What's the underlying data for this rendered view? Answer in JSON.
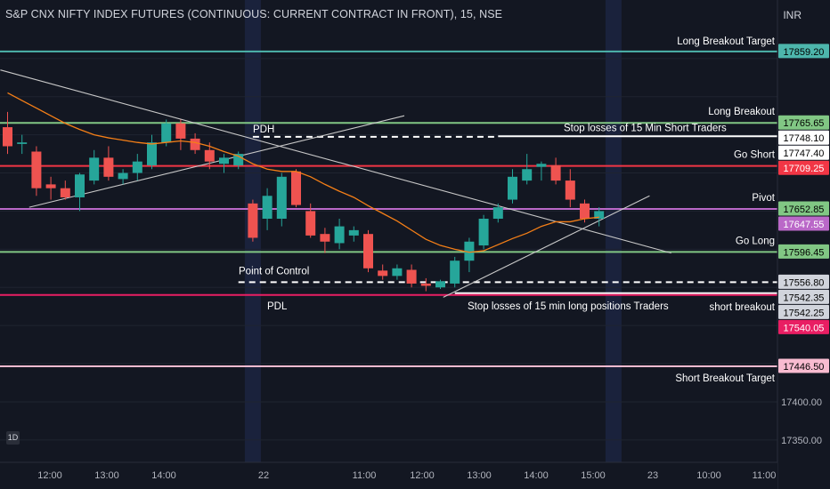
{
  "header": {
    "title": "S&P CNX NIFTY INDEX FUTURES (CONTINUOUS: CURRENT CONTRACT IN FRONT), 15, NSE",
    "currency": "INR"
  },
  "badge": "1D",
  "colors": {
    "background": "#131722",
    "up": "#26a69a",
    "down": "#ef5350",
    "ema": "#f57f17",
    "target": "#4db6ac",
    "green_level": "#81c784",
    "red_level": "#f23645",
    "pivot": "#ba68c8",
    "pink_level": "#e91e63",
    "light_pink": "#f8bbd0",
    "white": "#ffffff"
  },
  "chart_data": {
    "type": "candlestick",
    "ylim": [
      17330,
      17890
    ],
    "y_ticks": [
      "17400.00",
      "17350.00"
    ],
    "x_ticks": [
      "12:00",
      "13:00",
      "14:00",
      "22",
      "11:00",
      "12:00",
      "13:00",
      "14:00",
      "15:00",
      "23",
      "10:00",
      "11:00"
    ],
    "candles": [
      {
        "o": 17760,
        "h": 17780,
        "l": 17725,
        "c": 17735
      },
      {
        "o": 17738,
        "h": 17750,
        "l": 17725,
        "c": 17740
      },
      {
        "o": 17728,
        "h": 17735,
        "l": 17670,
        "c": 17680
      },
      {
        "o": 17685,
        "h": 17695,
        "l": 17665,
        "c": 17680
      },
      {
        "o": 17680,
        "h": 17690,
        "l": 17665,
        "c": 17668
      },
      {
        "o": 17668,
        "h": 17700,
        "l": 17650,
        "c": 17698
      },
      {
        "o": 17690,
        "h": 17730,
        "l": 17685,
        "c": 17720
      },
      {
        "o": 17720,
        "h": 17735,
        "l": 17690,
        "c": 17695
      },
      {
        "o": 17692,
        "h": 17705,
        "l": 17685,
        "c": 17700
      },
      {
        "o": 17700,
        "h": 17725,
        "l": 17690,
        "c": 17715
      },
      {
        "o": 17710,
        "h": 17750,
        "l": 17705,
        "c": 17740
      },
      {
        "o": 17740,
        "h": 17770,
        "l": 17735,
        "c": 17765
      },
      {
        "o": 17765,
        "h": 17770,
        "l": 17730,
        "c": 17745
      },
      {
        "o": 17745,
        "h": 17752,
        "l": 17725,
        "c": 17730
      },
      {
        "o": 17730,
        "h": 17740,
        "l": 17705,
        "c": 17715
      },
      {
        "o": 17712,
        "h": 17725,
        "l": 17700,
        "c": 17720
      },
      {
        "o": 17710,
        "h": 17728,
        "l": 17705,
        "c": 17725
      },
      {
        "o": 17660,
        "h": 17665,
        "l": 17610,
        "c": 17615
      },
      {
        "o": 17640,
        "h": 17680,
        "l": 17625,
        "c": 17670
      },
      {
        "o": 17640,
        "h": 17700,
        "l": 17630,
        "c": 17695
      },
      {
        "o": 17702,
        "h": 17705,
        "l": 17655,
        "c": 17658
      },
      {
        "o": 17650,
        "h": 17660,
        "l": 17615,
        "c": 17618
      },
      {
        "o": 17620,
        "h": 17628,
        "l": 17595,
        "c": 17610
      },
      {
        "o": 17608,
        "h": 17640,
        "l": 17600,
        "c": 17630
      },
      {
        "o": 17618,
        "h": 17630,
        "l": 17610,
        "c": 17625
      },
      {
        "o": 17620,
        "h": 17625,
        "l": 17570,
        "c": 17575
      },
      {
        "o": 17572,
        "h": 17580,
        "l": 17560,
        "c": 17565
      },
      {
        "o": 17565,
        "h": 17580,
        "l": 17560,
        "c": 17575
      },
      {
        "o": 17573,
        "h": 17580,
        "l": 17550,
        "c": 17555
      },
      {
        "o": 17555,
        "h": 17562,
        "l": 17545,
        "c": 17552
      },
      {
        "o": 17550,
        "h": 17560,
        "l": 17548,
        "c": 17558
      },
      {
        "o": 17555,
        "h": 17590,
        "l": 17550,
        "c": 17585
      },
      {
        "o": 17585,
        "h": 17615,
        "l": 17570,
        "c": 17610
      },
      {
        "o": 17605,
        "h": 17645,
        "l": 17600,
        "c": 17640
      },
      {
        "o": 17640,
        "h": 17660,
        "l": 17635,
        "c": 17655
      },
      {
        "o": 17665,
        "h": 17705,
        "l": 17660,
        "c": 17695
      },
      {
        "o": 17690,
        "h": 17725,
        "l": 17685,
        "c": 17705
      },
      {
        "o": 17708,
        "h": 17715,
        "l": 17690,
        "c": 17712
      },
      {
        "o": 17710,
        "h": 17720,
        "l": 17685,
        "c": 17690
      },
      {
        "o": 17690,
        "h": 17705,
        "l": 17655,
        "c": 17665
      },
      {
        "o": 17660,
        "h": 17665,
        "l": 17635,
        "c": 17640
      },
      {
        "o": 17640,
        "h": 17655,
        "l": 17630,
        "c": 17650
      }
    ],
    "ema": [
      17805,
      17795,
      17785,
      17775,
      17765,
      17757,
      17750,
      17746,
      17743,
      17740,
      17738,
      17740,
      17742,
      17740,
      17735,
      17728,
      17722,
      17712,
      17705,
      17702,
      17702,
      17695,
      17685,
      17676,
      17668,
      17657,
      17647,
      17637,
      17625,
      17613,
      17605,
      17600,
      17596,
      17598,
      17606,
      17614,
      17621,
      17630,
      17636,
      17636,
      17640,
      17642
    ],
    "levels": [
      {
        "name": "long-breakout-target",
        "price": 17859.2,
        "label": "Long Breakout Target",
        "color": "#4db6ac",
        "style": "solid",
        "from": 0
      },
      {
        "name": "long-breakout",
        "price": 17765.65,
        "label": "Long Breakout",
        "color": "#81c784",
        "style": "solid",
        "from": 0
      },
      {
        "name": "stop-short",
        "price": 17748.1,
        "label": "Stop losses of 15 Min Short Traders",
        "color": "#ffffff",
        "style": "solid",
        "from": 34
      },
      {
        "name": "pdh",
        "price": 17747.4,
        "label": "PDH",
        "color": "#ffffff",
        "style": "dashed",
        "from": 17,
        "to": 34
      },
      {
        "name": "go-short",
        "price": 17709.25,
        "label": "Go Short",
        "color": "#f23645",
        "style": "solid",
        "from": 0
      },
      {
        "name": "pivot",
        "price": 17652.85,
        "label": "Pivot",
        "color": "#ba68c8",
        "style": "solid",
        "from": 0
      },
      {
        "name": "go-long",
        "price": 17596.45,
        "label": "Go Long",
        "color": "#81c784",
        "style": "solid",
        "from": 0
      },
      {
        "name": "point-of-control",
        "price": 17556.8,
        "label": "Point of Control",
        "color": "#ffffff",
        "style": "dashed",
        "from": 16
      },
      {
        "name": "stop-long",
        "price": 17542.35,
        "label": "Stop losses of 15 min long positions Traders",
        "color": "#ffffff",
        "style": "solid",
        "from": 31
      },
      {
        "name": "pdl",
        "price": 17540.05,
        "label": "PDL",
        "color": "#e91e63",
        "style": "solid",
        "from": 0
      },
      {
        "name": "short-breakout-target",
        "price": 17446.5,
        "label": "Short  Breakout Target",
        "color": "#f8bbd0",
        "style": "solid",
        "from": 0
      }
    ],
    "label_short_breakout": "short breakout",
    "price_tags": [
      {
        "price": 17859.2,
        "text": "17859.20",
        "bg": "#4db6ac",
        "fg": "#000000"
      },
      {
        "price": 17765.65,
        "text": "17765.65",
        "bg": "#81c784",
        "fg": "#000000"
      },
      {
        "price": 17748.1,
        "text": "17748.10",
        "bg": "#ffffff",
        "fg": "#000000"
      },
      {
        "price": 17747.4,
        "text": "17747.40",
        "bg": "#ffffff",
        "fg": "#000000"
      },
      {
        "price": 17709.25,
        "text": "17709.25",
        "bg": "#f23645",
        "fg": "#ffffff"
      },
      {
        "price": 17652.85,
        "text": "17652.85",
        "bg": "#81c784",
        "fg": "#000000"
      },
      {
        "price": 17647.55,
        "text": "17647.55",
        "bg": "#ba68c8",
        "fg": "#ffffff"
      },
      {
        "price": 17596.45,
        "text": "17596.45",
        "bg": "#81c784",
        "fg": "#000000"
      },
      {
        "price": 17556.8,
        "text": "17556.80",
        "bg": "#d1d4dc",
        "fg": "#000000"
      },
      {
        "price": 17542.35,
        "text": "17542.35",
        "bg": "#d1d4dc",
        "fg": "#000000"
      },
      {
        "price": 17542.25,
        "text": "17542.25",
        "bg": "#d1d4dc",
        "fg": "#000000"
      },
      {
        "price": 17540.05,
        "text": "17540.05",
        "bg": "#e91e63",
        "fg": "#ffffff"
      },
      {
        "price": 17446.5,
        "text": "17446.50",
        "bg": "#f8bbd0",
        "fg": "#000000"
      }
    ],
    "trendlines": [
      {
        "name": "downtrend-line",
        "from": {
          "i": -0.5,
          "p": 17835
        },
        "to": {
          "i": 46.0,
          "p": 17595
        },
        "color": "#c8c8c8"
      },
      {
        "name": "uptrend-line-left",
        "from": {
          "i": 1.5,
          "p": 17655
        },
        "to": {
          "i": 27.5,
          "p": 17775
        },
        "color": "#c8c8c8"
      },
      {
        "name": "uptrend-line-right",
        "from": {
          "i": 30.2,
          "p": 17537
        },
        "to": {
          "i": 44.5,
          "p": 17670
        },
        "color": "#c8c8c8"
      }
    ],
    "session_bands": [
      17.0,
      42.0
    ]
  }
}
